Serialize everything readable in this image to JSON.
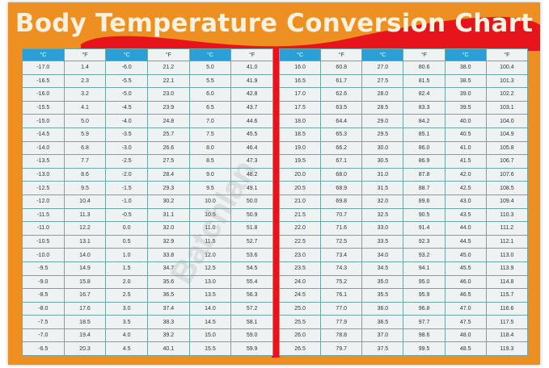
{
  "title": "Body Temperature Conversion Chart",
  "watermark": "Batchlan",
  "colors": {
    "background": "#ee8f22",
    "accent_red": "#e8141b",
    "celsius_header": "#2a9fd8",
    "cell": "#eef2f2",
    "grid": "#6fa7a4"
  },
  "headers": [
    "°C",
    "°F",
    "°C",
    "°F",
    "°C",
    "°F"
  ],
  "left_table": [
    [
      "-17.0",
      "1.4",
      "-6.0",
      "21.2",
      "5.0",
      "41.0"
    ],
    [
      "-16.5",
      "2.3",
      "-5.5",
      "22.1",
      "5.5",
      "41.9"
    ],
    [
      "-16.0",
      "3.2",
      "-5.0",
      "23.0",
      "6.0",
      "42.8"
    ],
    [
      "-15.5",
      "4.1",
      "-4.5",
      "23.9",
      "6.5",
      "43.7"
    ],
    [
      "-15.0",
      "5.0",
      "-4.0",
      "24.8",
      "7.0",
      "44.6"
    ],
    [
      "-14.5",
      "5.9",
      "-3.5",
      "25.7",
      "7.5",
      "45.5"
    ],
    [
      "-14.0",
      "6.8",
      "-3.0",
      "26.6",
      "8.0",
      "46.4"
    ],
    [
      "-13.5",
      "7.7",
      "-2.5",
      "27.5",
      "8.5",
      "47.3"
    ],
    [
      "-13.0",
      "8.6",
      "-2.0",
      "28.4",
      "9.0",
      "48.2"
    ],
    [
      "-12.5",
      "9.5",
      "-1.5",
      "29.3",
      "9.5",
      "49.1"
    ],
    [
      "-12.0",
      "10.4",
      "-1.0",
      "30.2",
      "10.0",
      "50.0"
    ],
    [
      "-11.5",
      "11.3",
      "-0.5",
      "31.1",
      "10.5",
      "50.9"
    ],
    [
      "-11.0",
      "12.2",
      "0.0",
      "32.0",
      "11.0",
      "51.8"
    ],
    [
      "-10.5",
      "13.1",
      "0.5",
      "32.9",
      "11.5",
      "52.7"
    ],
    [
      "-10.0",
      "14.0",
      "1.0",
      "33.8",
      "12.0",
      "53.6"
    ],
    [
      "-9.5",
      "14.9",
      "1.5",
      "34.7",
      "12.5",
      "54.5"
    ],
    [
      "-9.0",
      "15.8",
      "2.0",
      "35.6",
      "13.0",
      "55.4"
    ],
    [
      "-8.5",
      "16.7",
      "2.5",
      "36.5",
      "13.5",
      "56.3"
    ],
    [
      "-8.0",
      "17.6",
      "3.0",
      "37.4",
      "14.0",
      "57.2"
    ],
    [
      "-7.5",
      "18.5",
      "3.5",
      "38.3",
      "14.5",
      "58.1"
    ],
    [
      "-7.0",
      "19.4",
      "4.0",
      "39.2",
      "15.0",
      "59.0"
    ],
    [
      "-6.5",
      "20.3",
      "4.5",
      "40.1",
      "15.5",
      "59.9"
    ]
  ],
  "right_table": [
    [
      "16.0",
      "60.8",
      "27.0",
      "80.6",
      "38.0",
      "100.4"
    ],
    [
      "16.5",
      "61.7",
      "27.5",
      "81.5",
      "38.5",
      "101.3"
    ],
    [
      "17.0",
      "62.6",
      "28.0",
      "82.4",
      "39.0",
      "102.2"
    ],
    [
      "17.5",
      "63.5",
      "28.5",
      "83.3",
      "39.5",
      "103.1"
    ],
    [
      "18.0",
      "64.4",
      "29.0",
      "84.2",
      "40.0",
      "104.0"
    ],
    [
      "18.5",
      "65.3",
      "29.5",
      "85.1",
      "40.5",
      "104.9"
    ],
    [
      "19.0",
      "66.2",
      "30.0",
      "86.0",
      "41.0",
      "105.8"
    ],
    [
      "19.5",
      "67.1",
      "30.5",
      "86.9",
      "41.5",
      "106.7"
    ],
    [
      "20.0",
      "68.0",
      "31.0",
      "87.8",
      "42.0",
      "107.6"
    ],
    [
      "20.5",
      "68.9",
      "31.5",
      "88.7",
      "42.5",
      "108.5"
    ],
    [
      "21.0",
      "69.8",
      "32.0",
      "89.6",
      "43.0",
      "109.4"
    ],
    [
      "21.5",
      "70.7",
      "32.5",
      "90.5",
      "43.5",
      "110.3"
    ],
    [
      "22.0",
      "71.6",
      "33.0",
      "91.4",
      "44.0",
      "111.2"
    ],
    [
      "22.5",
      "72.5",
      "33.5",
      "92.3",
      "44.5",
      "112.1"
    ],
    [
      "23.0",
      "73.4",
      "34.0",
      "93.2",
      "45.0",
      "113.0"
    ],
    [
      "23.5",
      "74.3",
      "34.5",
      "94.1",
      "45.5",
      "113.9"
    ],
    [
      "24.0",
      "75.2",
      "35.0",
      "95.0",
      "46.0",
      "114.8"
    ],
    [
      "24.5",
      "76.1",
      "35.5",
      "95.9",
      "46.5",
      "115.7"
    ],
    [
      "25.0",
      "77.0",
      "36.0",
      "96.8",
      "47.0",
      "116.6"
    ],
    [
      "25.5",
      "77.9",
      "36.5",
      "97.7",
      "47.5",
      "117.5"
    ],
    [
      "26.0",
      "78.8",
      "37.0",
      "98.6",
      "48.0",
      "118.4"
    ],
    [
      "26.5",
      "79.7",
      "37.5",
      "99.5",
      "48.5",
      "119.3"
    ]
  ]
}
